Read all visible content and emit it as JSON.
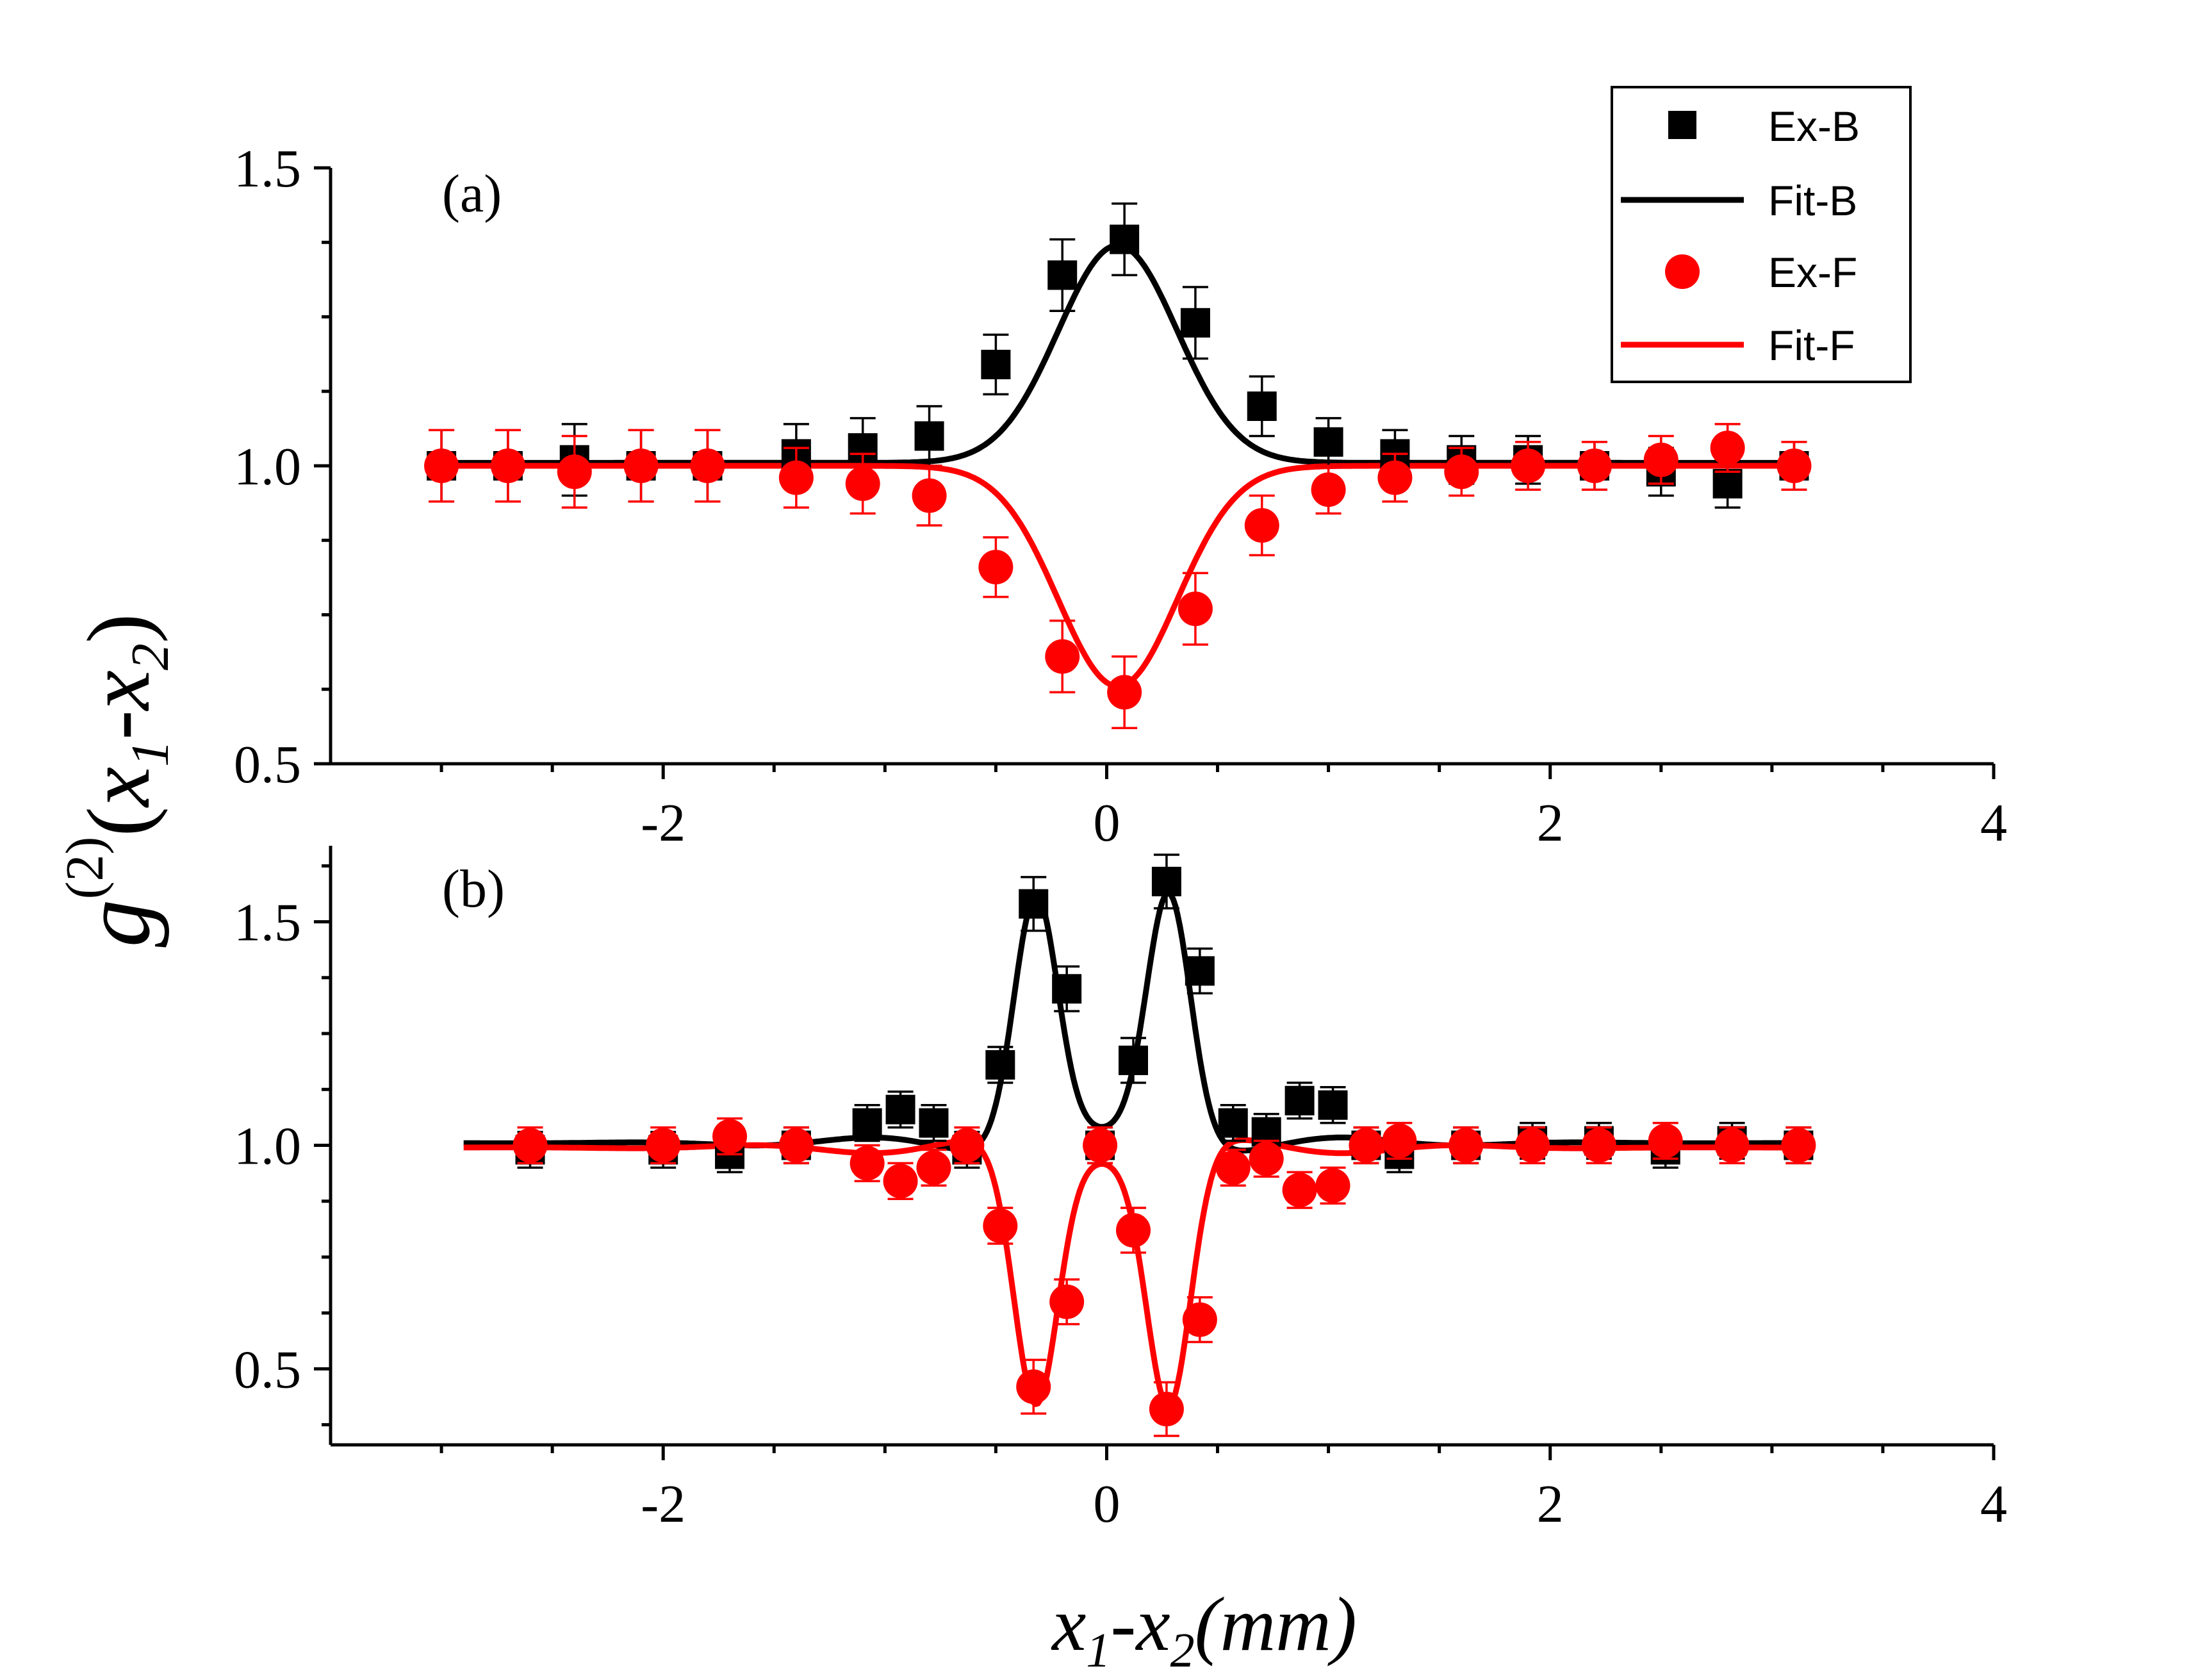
{
  "chart_data": [
    {
      "type": "scatter",
      "panel_label": "(a)",
      "xlim": [
        -3.5,
        4
      ],
      "ylim": [
        0.5,
        1.5
      ],
      "xticks": [
        -2,
        0,
        2,
        4
      ],
      "xtick_labels": [
        "-2",
        "0",
        "2",
        "4"
      ],
      "yticks": [
        0.5,
        1.0,
        1.5
      ],
      "ytick_labels": [
        "0.5",
        "1.0",
        "1.5"
      ],
      "series": [
        {
          "name": "Ex-B",
          "kind": "points",
          "marker": "square",
          "color": "#000000",
          "x": [
            -3.0,
            -2.7,
            -2.4,
            -2.1,
            -1.8,
            -1.4,
            -1.1,
            -0.8,
            -0.5,
            -0.2,
            0.08,
            0.4,
            0.7,
            1.0,
            1.3,
            1.6,
            1.9,
            2.2,
            2.5,
            2.8,
            3.1
          ],
          "y": [
            1.0,
            1.0,
            1.01,
            1.0,
            1.0,
            1.02,
            1.03,
            1.05,
            1.17,
            1.32,
            1.38,
            1.24,
            1.1,
            1.04,
            1.02,
            1.01,
            1.01,
            1.0,
            0.99,
            0.97,
            1.0
          ],
          "err": [
            0.06,
            0.06,
            0.06,
            0.06,
            0.06,
            0.05,
            0.05,
            0.05,
            0.05,
            0.06,
            0.06,
            0.06,
            0.05,
            0.04,
            0.04,
            0.04,
            0.04,
            0.04,
            0.04,
            0.04,
            0.04
          ]
        },
        {
          "name": "Fit-B",
          "kind": "curve",
          "color": "#000000",
          "model": "gauss",
          "offset": 1.005,
          "amp": 0.365,
          "center": 0.05,
          "width": 0.38,
          "xrange": [
            -3.0,
            3.1
          ]
        },
        {
          "name": "Ex-F",
          "kind": "points",
          "marker": "circle",
          "color": "#ff0000",
          "x": [
            -3.0,
            -2.7,
            -2.4,
            -2.1,
            -1.8,
            -1.4,
            -1.1,
            -0.8,
            -0.5,
            -0.2,
            0.08,
            0.4,
            0.7,
            1.0,
            1.3,
            1.6,
            1.9,
            2.2,
            2.5,
            2.8,
            3.1
          ],
          "y": [
            1.0,
            1.0,
            0.99,
            1.0,
            1.0,
            0.98,
            0.97,
            0.95,
            0.83,
            0.68,
            0.62,
            0.76,
            0.9,
            0.96,
            0.98,
            0.99,
            1.0,
            1.0,
            1.01,
            1.03,
            1.0
          ],
          "err": [
            0.06,
            0.06,
            0.06,
            0.06,
            0.06,
            0.05,
            0.05,
            0.05,
            0.05,
            0.06,
            0.06,
            0.06,
            0.05,
            0.04,
            0.04,
            0.04,
            0.04,
            0.04,
            0.04,
            0.04,
            0.04
          ]
        },
        {
          "name": "Fit-F",
          "kind": "curve",
          "color": "#ff0000",
          "model": "gauss",
          "offset": 1.0,
          "amp": -0.37,
          "center": 0.05,
          "width": 0.38,
          "xrange": [
            -3.0,
            3.1
          ]
        }
      ]
    },
    {
      "type": "scatter",
      "panel_label": "(b)",
      "xlim": [
        -3.5,
        4
      ],
      "ylim": [
        0.33,
        1.67
      ],
      "xticks": [
        -2,
        0,
        2,
        4
      ],
      "xtick_labels": [
        "-2",
        "0",
        "2",
        "4"
      ],
      "yticks": [
        0.5,
        1.0,
        1.5
      ],
      "ytick_labels": [
        "0.5",
        "1.0",
        "1.5"
      ],
      "series": [
        {
          "name": "Ex-B",
          "kind": "points",
          "marker": "square",
          "color": "#000000",
          "x": [
            -2.6,
            -2.0,
            -1.7,
            -1.4,
            -1.08,
            -0.93,
            -0.78,
            -0.63,
            -0.48,
            -0.33,
            -0.18,
            -0.03,
            0.12,
            0.27,
            0.42,
            0.57,
            0.72,
            0.87,
            1.02,
            1.17,
            1.32,
            1.62,
            1.92,
            2.22,
            2.52,
            2.82,
            3.12
          ],
          "y": [
            0.99,
            0.99,
            0.98,
            1.0,
            1.05,
            1.08,
            1.05,
            0.99,
            1.18,
            1.54,
            1.35,
            1.0,
            1.19,
            1.59,
            1.39,
            1.05,
            1.03,
            1.1,
            1.09,
            1.0,
            0.98,
            1.0,
            1.01,
            1.01,
            0.99,
            1.01,
            1.0
          ],
          "err": [
            0.04,
            0.04,
            0.04,
            0.04,
            0.04,
            0.04,
            0.04,
            0.04,
            0.04,
            0.06,
            0.05,
            0.04,
            0.05,
            0.06,
            0.05,
            0.04,
            0.04,
            0.04,
            0.04,
            0.04,
            0.04,
            0.04,
            0.04,
            0.04,
            0.04,
            0.04,
            0.04
          ]
        },
        {
          "name": "Fit-B",
          "kind": "curve",
          "color": "#000000",
          "model": "double_peak",
          "offset": 1.005,
          "amp": 0.56,
          "center": -0.02,
          "sep": 0.3,
          "width": 0.14,
          "ripple": 0.025,
          "xrange": [
            -2.9,
            3.1
          ]
        },
        {
          "name": "Ex-F",
          "kind": "points",
          "marker": "circle",
          "color": "#ff0000",
          "x": [
            -2.6,
            -2.0,
            -1.7,
            -1.4,
            -1.08,
            -0.93,
            -0.78,
            -0.63,
            -0.48,
            -0.33,
            -0.18,
            -0.03,
            0.12,
            0.27,
            0.42,
            0.57,
            0.72,
            0.87,
            1.02,
            1.17,
            1.32,
            1.62,
            1.92,
            2.22,
            2.52,
            2.82,
            3.12
          ],
          "y": [
            1.0,
            1.0,
            1.02,
            1.0,
            0.96,
            0.92,
            0.95,
            1.0,
            0.82,
            0.46,
            0.65,
            1.0,
            0.81,
            0.41,
            0.61,
            0.95,
            0.97,
            0.9,
            0.91,
            1.0,
            1.01,
            1.0,
            1.0,
            1.0,
            1.01,
            1.0,
            1.0
          ],
          "err": [
            0.04,
            0.04,
            0.04,
            0.04,
            0.04,
            0.04,
            0.04,
            0.04,
            0.04,
            0.06,
            0.05,
            0.04,
            0.05,
            0.06,
            0.05,
            0.04,
            0.04,
            0.04,
            0.04,
            0.04,
            0.04,
            0.04,
            0.04,
            0.04,
            0.04,
            0.04,
            0.04
          ]
        },
        {
          "name": "Fit-F",
          "kind": "curve",
          "color": "#ff0000",
          "model": "double_peak",
          "offset": 0.995,
          "amp": -0.58,
          "center": -0.02,
          "sep": 0.3,
          "width": 0.14,
          "ripple": 0.025,
          "xrange": [
            -2.9,
            3.1
          ]
        }
      ]
    }
  ],
  "legend": {
    "placement": "top-right",
    "entries": [
      {
        "label": "Ex-B",
        "symbol": "square",
        "color": "#000000"
      },
      {
        "label": "Fit-B",
        "symbol": "line",
        "color": "#000000"
      },
      {
        "label": "Ex-F",
        "symbol": "circle",
        "color": "#ff0000"
      },
      {
        "label": "Fit-F",
        "symbol": "line",
        "color": "#ff0000"
      }
    ]
  },
  "axis_titles": {
    "y_main": "g",
    "y_sup": "(2)",
    "y_open": "(",
    "y_x1": "x",
    "y_sub1": "1",
    "y_dash": "-",
    "y_x2": "x",
    "y_sub2": "2",
    "y_close": ")",
    "x_x1": "x",
    "x_sub1": "1",
    "x_dash": "-",
    "x_x2": "x",
    "x_sub2": "2",
    "x_unit": "(mm)"
  }
}
